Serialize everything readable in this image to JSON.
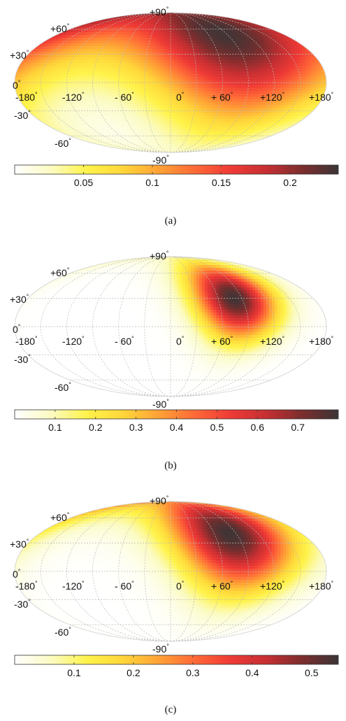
{
  "figure": {
    "projection": "Mollweide",
    "grid": true,
    "colormap": [
      "#ffffff",
      "#fbfbc4",
      "#fff34a",
      "#ffd73a",
      "#ffa236",
      "#ff6a37",
      "#ef3a36",
      "#c62f32",
      "#7c2d2d",
      "#3b3536"
    ],
    "grid_color": "#b8b8b8"
  },
  "chart_data": [
    {
      "type": "heatmap",
      "caption": "(a)",
      "projection": "Mollweide",
      "lat_labels": [
        "+90",
        "+60",
        "+30",
        "0",
        "-30",
        "-60",
        "-90"
      ],
      "lon_labels": [
        "-180",
        "-120",
        "- 60",
        "0",
        "+ 60",
        "+120",
        "+180"
      ],
      "degree_symbol": "°",
      "peak": {
        "lon": 85,
        "lat": 55,
        "value": 0.232
      },
      "background_value": 0.005,
      "spread_deg": 65,
      "colorbar": {
        "min": 0.0,
        "max": 0.235,
        "ticks": [
          0.05,
          0.1,
          0.15,
          0.2
        ],
        "tick_labels": [
          "0.05",
          "0.1",
          "0.15",
          "0.2"
        ]
      }
    },
    {
      "type": "heatmap",
      "caption": "(b)",
      "projection": "Mollweide",
      "lat_labels": [
        "+90",
        "+60",
        "+30",
        "0",
        "-30",
        "-60",
        "-90"
      ],
      "lon_labels": [
        "-180",
        "-120",
        "- 60",
        "0",
        "+ 60",
        "+120",
        "+180"
      ],
      "degree_symbol": "°",
      "peak": {
        "lon": 80,
        "lat": 30,
        "value": 0.79
      },
      "background_value": 0.0,
      "spread_deg": 30,
      "colorbar": {
        "min": 0.0,
        "max": 0.8,
        "ticks": [
          0.1,
          0.2,
          0.3,
          0.4,
          0.5,
          0.6,
          0.7
        ],
        "tick_labels": [
          "0.1",
          "0.2",
          "0.3",
          "0.4",
          "0.5",
          "0.6",
          "0.7"
        ]
      }
    },
    {
      "type": "heatmap",
      "caption": "(c)",
      "projection": "Mollweide",
      "lat_labels": [
        "+90",
        "+60",
        "+30",
        "0",
        "-30",
        "-60",
        "-90"
      ],
      "lon_labels": [
        "-180",
        "-120",
        "- 60",
        "0",
        "+ 60",
        "+120",
        "+180"
      ],
      "degree_symbol": "°",
      "peak": {
        "lon": 80,
        "lat": 40,
        "value": 0.54
      },
      "background_value": 0.0,
      "spread_deg": 42,
      "colorbar": {
        "min": 0.0,
        "max": 0.545,
        "ticks": [
          0.1,
          0.2,
          0.3,
          0.4,
          0.5
        ],
        "tick_labels": [
          "0.1",
          "0.2",
          "0.3",
          "0.4",
          "0.5"
        ]
      }
    }
  ]
}
